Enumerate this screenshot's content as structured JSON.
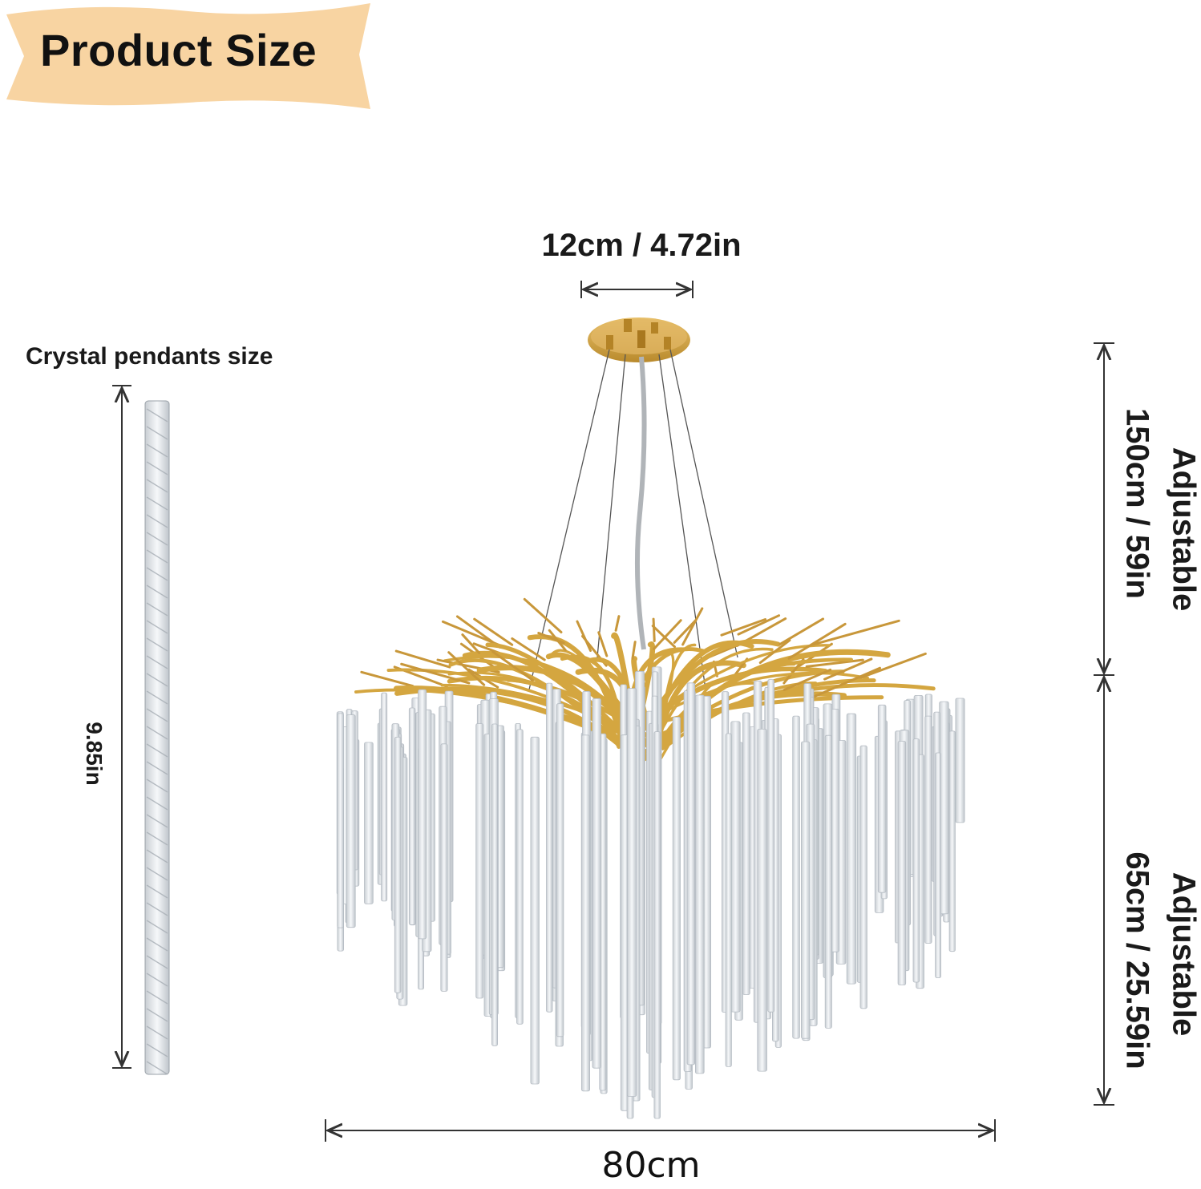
{
  "banner": {
    "title": "Product Size",
    "color": "#f8d4a2"
  },
  "dimensions": {
    "canopy_width": "12cm / 4.72in",
    "pendant_title": "Crystal pendants size",
    "pendant_length": "9.85in",
    "cable_length": "150cm / 59in",
    "cable_note": "Adjustable",
    "body_height": "65cm / 25.59in",
    "body_note": "Adjustable",
    "width": "80cm"
  },
  "colors": {
    "gold": "#d4a640",
    "crystal": "#dfe4e8",
    "line": "#333333"
  }
}
